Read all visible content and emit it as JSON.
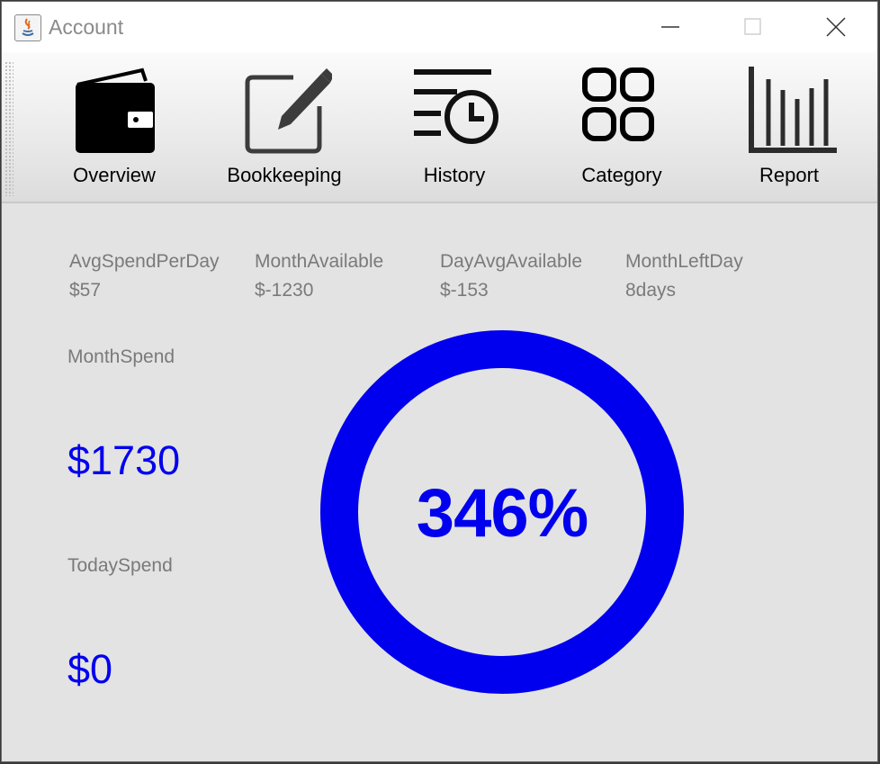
{
  "window": {
    "title": "Account"
  },
  "toolbar": {
    "items": [
      {
        "label": "Overview",
        "icon": "wallet-icon"
      },
      {
        "label": "Bookkeeping",
        "icon": "edit-icon"
      },
      {
        "label": "History",
        "icon": "history-icon"
      },
      {
        "label": "Category",
        "icon": "category-grid-icon"
      },
      {
        "label": "Report",
        "icon": "bar-chart-icon"
      }
    ]
  },
  "stats": [
    {
      "label": "AvgSpendPerDay",
      "value": "$57"
    },
    {
      "label": "MonthAvailable",
      "value": "$-1230"
    },
    {
      "label": "DayAvgAvailable",
      "value": "$-153"
    },
    {
      "label": "MonthLeftDay",
      "value": "8days"
    }
  ],
  "month_spend": {
    "label": "MonthSpend",
    "value": "$1730"
  },
  "today_spend": {
    "label": "TodaySpend",
    "value": "$0"
  },
  "progress": {
    "text": "346%",
    "fraction": 1.0,
    "color": "#0000ee"
  },
  "colors": {
    "accent": "#0000ee",
    "muted_text": "#7a7a7a",
    "background": "#e3e3e3"
  }
}
